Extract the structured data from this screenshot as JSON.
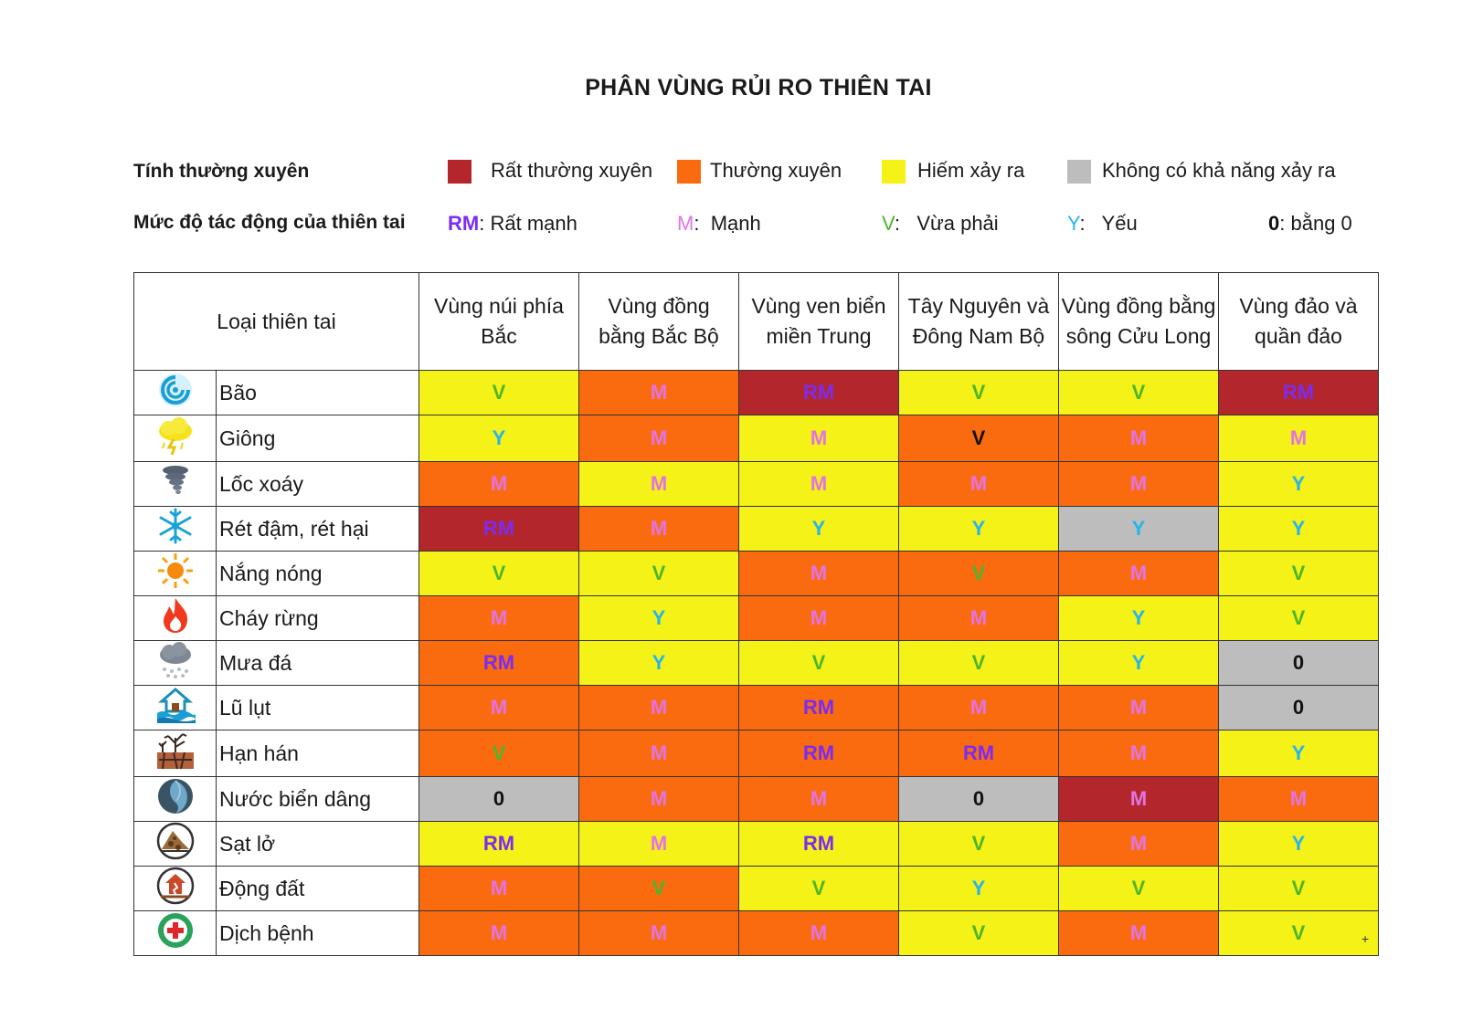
{
  "title": "PHÂN VÙNG RỦI RO THIÊN TAI",
  "legend": {
    "frequency_heading": "Tính thường xuyên",
    "frequency": [
      {
        "key": "RTX",
        "label": "Rất thường xuyên",
        "color": "#b3262b"
      },
      {
        "key": "TX",
        "label": "Thường xuyên",
        "color": "#fa6b10"
      },
      {
        "key": "HXR",
        "label": "Hiếm xảy ra",
        "color": "#f5f218"
      },
      {
        "key": "K",
        "label": "Không có khả năng xảy ra",
        "color": "#bdbdbd"
      }
    ],
    "impact_heading": "Mức độ tác động của thiên tai",
    "impact": [
      {
        "code": "RM",
        "sep": ":",
        "label": "Rất mạnh",
        "color": "#7b2cf0"
      },
      {
        "code": "M",
        "sep": ":",
        "label": "Mạnh",
        "color": "#e273e6"
      },
      {
        "code": "V",
        "sep": ":",
        "label": "Vừa phải",
        "color": "#4db52c"
      },
      {
        "code": "Y",
        "sep": ":",
        "label": "Yếu",
        "color": "#26b5ea"
      },
      {
        "code": "0",
        "sep": ":",
        "label": "bằng 0",
        "color": "#111111"
      }
    ]
  },
  "table": {
    "first_header": "Loại thiên tai",
    "regions": [
      "Vùng núi phía Bắc",
      "Vùng đồng bằng Bắc Bộ",
      "Vùng ven biển miền Trung",
      "Tây Nguyên và Đông Nam Bộ",
      "Vùng đồng bằng sông Cửu Long",
      "Vùng đảo và quần đảo"
    ],
    "rows": [
      {
        "name": "Bão",
        "icon": "storm-icon",
        "cells": [
          [
            "HXR",
            "V"
          ],
          [
            "TX",
            "M"
          ],
          [
            "RTX",
            "RM"
          ],
          [
            "HXR",
            "V"
          ],
          [
            "HXR",
            "V"
          ],
          [
            "RTX",
            "RM"
          ]
        ]
      },
      {
        "name": "Giông",
        "icon": "thunderstorm-icon",
        "cells": [
          [
            "HXR",
            "Y"
          ],
          [
            "TX",
            "M"
          ],
          [
            "HXR",
            "M"
          ],
          [
            "TX",
            "V*"
          ],
          [
            "TX",
            "M"
          ],
          [
            "HXR",
            "M"
          ]
        ]
      },
      {
        "name": "Lốc xoáy",
        "icon": "tornado-icon",
        "cells": [
          [
            "TX",
            "M"
          ],
          [
            "HXR",
            "M"
          ],
          [
            "HXR",
            "M"
          ],
          [
            "TX",
            "M"
          ],
          [
            "TX",
            "M"
          ],
          [
            "HXR",
            "Y"
          ]
        ]
      },
      {
        "name": "Rét đậm, rét hại",
        "icon": "snowflake-icon",
        "cells": [
          [
            "RTX",
            "RM"
          ],
          [
            "TX",
            "M"
          ],
          [
            "HXR",
            "Y"
          ],
          [
            "HXR",
            "Y"
          ],
          [
            "K",
            "Y"
          ],
          [
            "HXR",
            "Y"
          ]
        ]
      },
      {
        "name": "Nắng nóng",
        "icon": "sun-icon",
        "cells": [
          [
            "HXR",
            "V"
          ],
          [
            "HXR",
            "V"
          ],
          [
            "TX",
            "M"
          ],
          [
            "TX",
            "V"
          ],
          [
            "TX",
            "M"
          ],
          [
            "HXR",
            "V"
          ]
        ]
      },
      {
        "name": "Cháy rừng",
        "icon": "fire-icon",
        "cells": [
          [
            "TX",
            "M"
          ],
          [
            "HXR",
            "Y"
          ],
          [
            "TX",
            "M"
          ],
          [
            "TX",
            "M"
          ],
          [
            "HXR",
            "Y"
          ],
          [
            "HXR",
            "V"
          ]
        ]
      },
      {
        "name": "Mưa đá",
        "icon": "hail-icon",
        "cells": [
          [
            "TX",
            "RM"
          ],
          [
            "HXR",
            "Y"
          ],
          [
            "HXR",
            "V"
          ],
          [
            "HXR",
            "V"
          ],
          [
            "HXR",
            "Y"
          ],
          [
            "K",
            "0"
          ]
        ]
      },
      {
        "name": "Lũ lụt",
        "icon": "flood-icon",
        "cells": [
          [
            "TX",
            "M"
          ],
          [
            "TX",
            "M"
          ],
          [
            "TX",
            "RM"
          ],
          [
            "TX",
            "M"
          ],
          [
            "TX",
            "M"
          ],
          [
            "K",
            "0"
          ]
        ]
      },
      {
        "name": "Hạn hán",
        "icon": "drought-icon",
        "cells": [
          [
            "TX",
            "V"
          ],
          [
            "TX",
            "M"
          ],
          [
            "TX",
            "RM"
          ],
          [
            "TX",
            "RM"
          ],
          [
            "TX",
            "M"
          ],
          [
            "HXR",
            "Y"
          ]
        ]
      },
      {
        "name": "Nước biển dâng",
        "icon": "sea-level-icon",
        "cells": [
          [
            "K",
            "0"
          ],
          [
            "TX",
            "M"
          ],
          [
            "TX",
            "M"
          ],
          [
            "K",
            "0"
          ],
          [
            "RTX",
            "M"
          ],
          [
            "TX",
            "M"
          ]
        ]
      },
      {
        "name": "Sạt lở",
        "icon": "landslide-icon",
        "cells": [
          [
            "HXR",
            "RM"
          ],
          [
            "HXR",
            "M"
          ],
          [
            "HXR",
            "RM"
          ],
          [
            "HXR",
            "V"
          ],
          [
            "TX",
            "M"
          ],
          [
            "HXR",
            "Y"
          ]
        ]
      },
      {
        "name": "Động đất",
        "icon": "earthquake-icon",
        "cells": [
          [
            "TX",
            "M"
          ],
          [
            "TX",
            "V"
          ],
          [
            "HXR",
            "V"
          ],
          [
            "HXR",
            "Y"
          ],
          [
            "HXR",
            "V"
          ],
          [
            "HXR",
            "V"
          ]
        ]
      },
      {
        "name": "Dịch bệnh",
        "icon": "epidemic-icon",
        "cells": [
          [
            "TX",
            "M"
          ],
          [
            "TX",
            "M"
          ],
          [
            "TX",
            "M"
          ],
          [
            "HXR",
            "V"
          ],
          [
            "TX",
            "M"
          ],
          [
            "HXR",
            "V"
          ]
        ]
      }
    ]
  },
  "corner_mark": "+"
}
